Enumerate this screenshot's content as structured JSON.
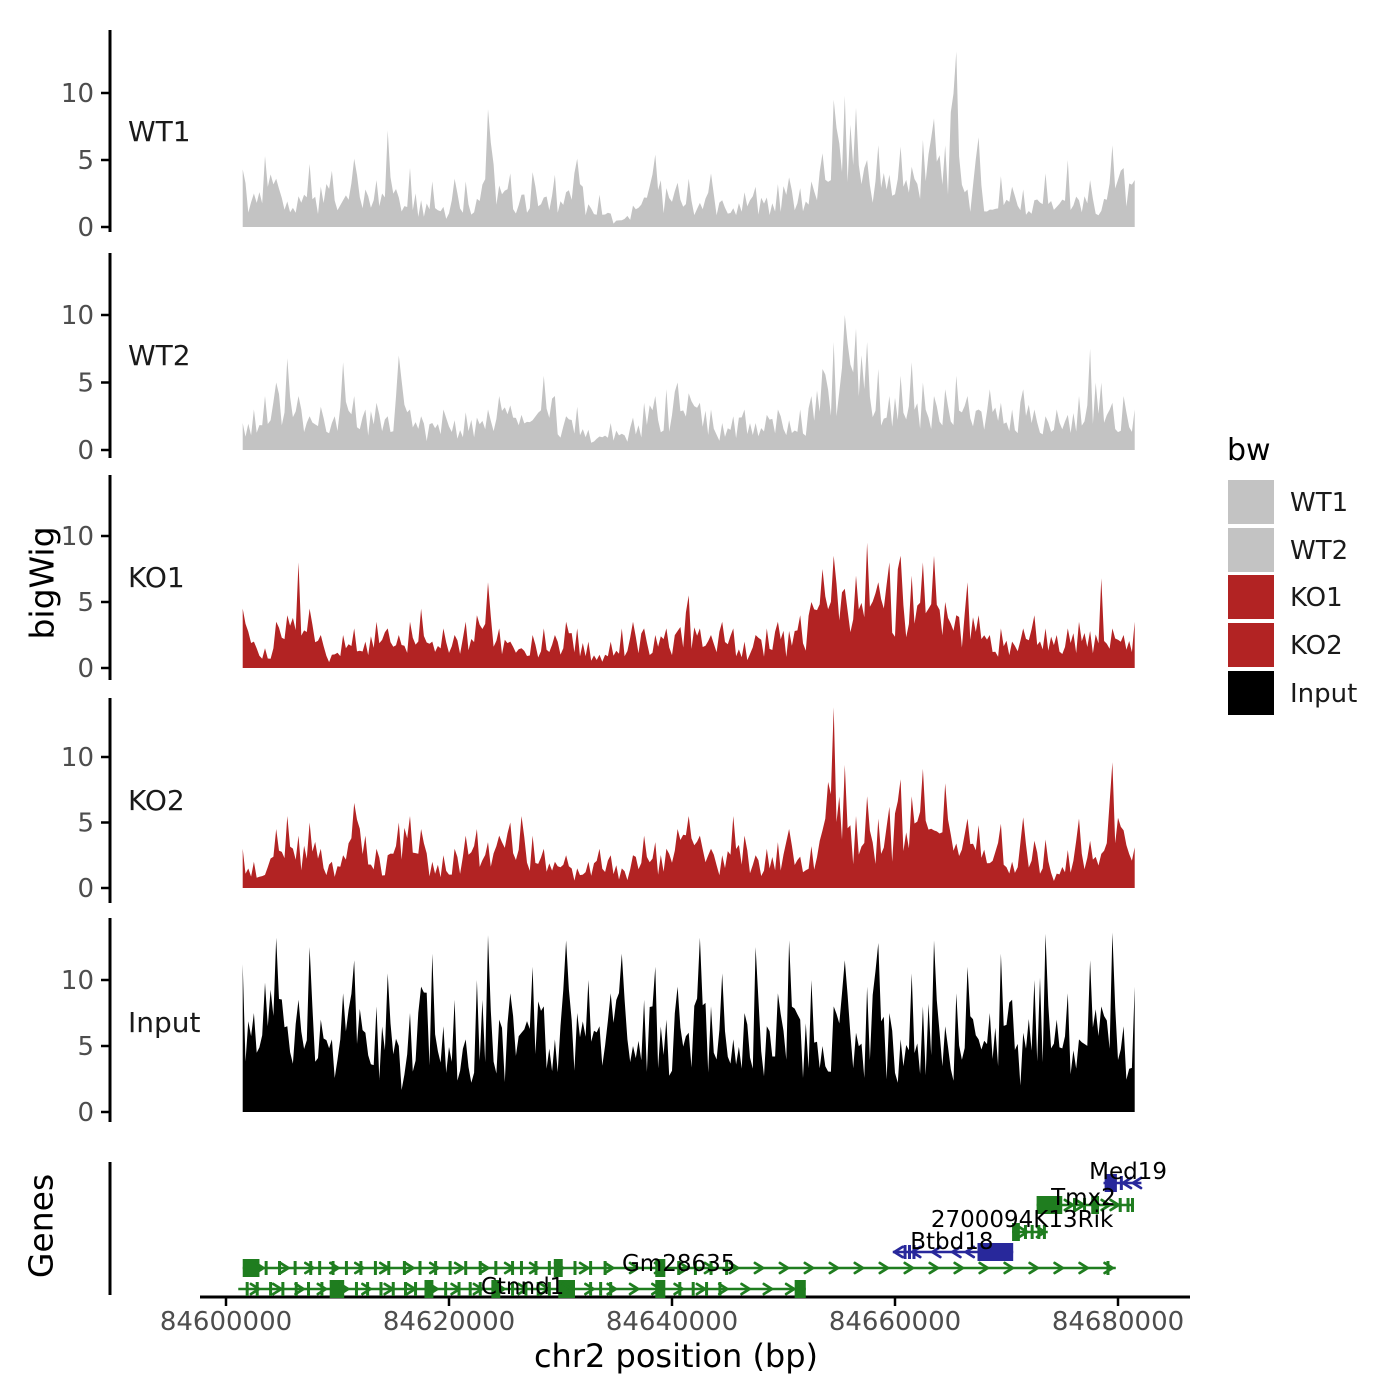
{
  "figure": {
    "background": "#ffffff"
  },
  "chart_data": {
    "type": "area",
    "description": "Genome browser coverage plot: five bigWig signal tracks stacked over a gene-model track",
    "xlabel": "chr2 position (bp)",
    "ylabel_tracks": "bigWig",
    "ylabel_genes": "Genes",
    "x_axis": {
      "range": [
        84600000,
        84680000
      ],
      "ticks": [
        84600000,
        84620000,
        84640000,
        84660000,
        84680000
      ],
      "tick_labels": [
        "84600000",
        "84620000",
        "84640000",
        "84660000",
        "84680000"
      ]
    },
    "y_axis": {
      "ticks": [
        0,
        5,
        10
      ],
      "tick_labels": [
        "0",
        "5",
        "10"
      ],
      "ylim": [
        0,
        14
      ]
    },
    "tracks": [
      {
        "name": "WT1",
        "color": "#c3c3c3",
        "start_bp": 84601500,
        "step_bp": 1000,
        "values": [
          4.3,
          2.5,
          5.3,
          3.6,
          1.9,
          2.3,
          4.7,
          3.0,
          4.2,
          2.0,
          5.1,
          2.8,
          3.5,
          7.2,
          2.2,
          4.4,
          2.0,
          3.4,
          1.5,
          3.6,
          3.4,
          2.1,
          8.8,
          3.1,
          4.0,
          2.4,
          4.1,
          2.2,
          3.9,
          2.6,
          5.1,
          1.7,
          2.4,
          1.0,
          0.5,
          1.6,
          2.2,
          5.4,
          2.9,
          3.3,
          3.6,
          1.8,
          4.0,
          2.0,
          1.4,
          2.6,
          3.0,
          2.2,
          3.2,
          3.7,
          2.9,
          3.4,
          5.5,
          9.5,
          9.8,
          8.9,
          5.0,
          6.1,
          3.9,
          6.0,
          4.5,
          6.5,
          8.1,
          6.1,
          13.1,
          2.8,
          6.7,
          1.3,
          3.8,
          3.0,
          2.8,
          2.0,
          4.0,
          1.5,
          5.0,
          2.0,
          3.5,
          1.2,
          6.1,
          4.4,
          3.5
        ]
      },
      {
        "name": "WT2",
        "color": "#c3c3c3",
        "start_bp": 84601500,
        "step_bp": 1000,
        "values": [
          2.0,
          3.0,
          4.0,
          5.0,
          6.8,
          4.0,
          2.5,
          3.2,
          2.0,
          6.5,
          4.0,
          3.0,
          3.5,
          2.5,
          7.0,
          3.0,
          2.5,
          2.0,
          3.0,
          2.2,
          2.8,
          2.4,
          3.0,
          4.0,
          3.3,
          2.6,
          2.2,
          5.5,
          4.0,
          2.5,
          3.2,
          1.5,
          1.0,
          2.0,
          1.2,
          2.4,
          3.5,
          4.0,
          4.5,
          5.0,
          4.2,
          3.5,
          3.0,
          2.0,
          2.5,
          3.0,
          2.0,
          2.6,
          3.0,
          2.2,
          3.0,
          4.0,
          6.0,
          8.0,
          10.0,
          9.0,
          8.0,
          6.0,
          4.0,
          5.5,
          6.5,
          5.0,
          4.0,
          4.5,
          5.5,
          4.0,
          3.0,
          4.5,
          3.5,
          3.0,
          4.5,
          3.0,
          2.5,
          3.0,
          2.6,
          4.0,
          7.5,
          5.0,
          3.5,
          4.0,
          3.0
        ]
      },
      {
        "name": "KO1",
        "color": "#b22323",
        "start_bp": 84601500,
        "step_bp": 1000,
        "values": [
          4.5,
          2.0,
          1.5,
          3.5,
          4.0,
          8.0,
          4.5,
          2.5,
          1.0,
          2.5,
          3.0,
          2.0,
          3.5,
          3.0,
          2.5,
          3.5,
          4.5,
          2.0,
          3.0,
          2.5,
          3.5,
          4.0,
          6.5,
          3.0,
          2.0,
          1.5,
          2.5,
          3.0,
          2.5,
          3.5,
          3.0,
          2.0,
          1.0,
          2.0,
          3.0,
          3.5,
          3.0,
          2.5,
          3.0,
          2.8,
          5.5,
          3.0,
          2.5,
          3.5,
          3.0,
          2.0,
          2.5,
          3.0,
          3.5,
          2.8,
          4.0,
          5.0,
          7.5,
          8.5,
          6.0,
          7.0,
          9.5,
          6.5,
          8.0,
          8.5,
          7.0,
          8.0,
          8.5,
          5.0,
          4.0,
          6.5,
          4.0,
          2.5,
          3.0,
          2.0,
          3.0,
          4.0,
          3.0,
          2.5,
          3.0,
          3.5,
          2.8,
          6.8,
          3.0,
          2.5,
          3.5
        ]
      },
      {
        "name": "KO2",
        "color": "#b22323",
        "start_bp": 84601500,
        "step_bp": 1000,
        "values": [
          3.0,
          2.0,
          1.0,
          4.5,
          5.5,
          4.0,
          5.0,
          3.0,
          2.0,
          2.5,
          6.5,
          4.0,
          3.0,
          2.5,
          5.0,
          5.5,
          4.5,
          2.0,
          2.5,
          3.0,
          4.0,
          4.5,
          3.5,
          4.0,
          5.0,
          5.5,
          4.0,
          3.0,
          2.0,
          2.5,
          1.5,
          2.0,
          3.0,
          2.5,
          1.5,
          2.5,
          4.0,
          3.5,
          3.0,
          4.5,
          5.5,
          4.0,
          3.0,
          2.5,
          5.5,
          4.0,
          2.5,
          3.0,
          3.5,
          4.5,
          2.4,
          3.2,
          4.4,
          13.8,
          9.4,
          5.5,
          7.0,
          5.3,
          6.2,
          8.3,
          7.0,
          9.1,
          4.4,
          8.0,
          3.4,
          5.3,
          4.8,
          1.9,
          4.9,
          2.0,
          5.4,
          3.6,
          3.7,
          1.1,
          2.9,
          5.3,
          3.6,
          2.6,
          9.6,
          4.4,
          3.1
        ]
      },
      {
        "name": "Input",
        "color": "#000000",
        "start_bp": 84601500,
        "step_bp": 1000,
        "values": [
          11.2,
          7.5,
          9.8,
          13.2,
          6.5,
          8.5,
          12.5,
          7.0,
          5.5,
          9.0,
          11.5,
          6.0,
          8.0,
          10.5,
          5.0,
          7.5,
          9.5,
          12.0,
          6.5,
          8.5,
          5.5,
          10.0,
          13.4,
          7.0,
          9.0,
          6.0,
          11.0,
          8.0,
          5.5,
          13.0,
          7.5,
          10.0,
          6.5,
          9.0,
          12.0,
          5.0,
          8.5,
          11.0,
          7.0,
          9.5,
          6.0,
          13.2,
          8.0,
          10.5,
          5.5,
          7.5,
          12.5,
          6.5,
          9.0,
          13.0,
          7.0,
          10.0,
          5.0,
          8.0,
          11.5,
          6.0,
          9.5,
          12.8,
          7.5,
          5.5,
          10.5,
          8.0,
          13.0,
          6.5,
          9.0,
          11.0,
          5.5,
          7.5,
          12.0,
          8.5,
          6.0,
          10.0,
          13.5,
          7.0,
          9.0,
          5.5,
          11.5,
          8.0,
          13.6,
          6.5,
          9.5
        ]
      }
    ],
    "gene_colors": {
      "plus": "#28289b",
      "minus": "#1f7d1f"
    },
    "genes": [
      {
        "name": "Med19",
        "strand": "+",
        "start": 84678700,
        "end": 84682100,
        "boxes": [
          [
            84678800,
            84679900
          ]
        ],
        "ticks": [
          84680300
        ],
        "arrows": [
          84680800,
          84681700
        ],
        "label_bp": 84680900
      },
      {
        "name": "Tmx2",
        "strand": "-",
        "start": 84672700,
        "end": 84681400,
        "boxes": [
          [
            84672700,
            84675000
          ],
          [
            84677600,
            84678300
          ]
        ],
        "ticks": [
          84676100,
          84677000,
          84680200,
          84680900,
          84681300
        ],
        "arrows": [
          84675600,
          84676600,
          84678900,
          84679700
        ],
        "label_bp": 84676900
      },
      {
        "name": "2700094K13Rik",
        "strand": "-",
        "start": 84670500,
        "end": 84673700,
        "boxes": [
          [
            84670500,
            84671200
          ]
        ],
        "ticks": [
          84671700,
          84672300,
          84672900,
          84673400
        ],
        "arrows": [
          84671500,
          84673100
        ],
        "label_bp": 84671400
      },
      {
        "name": "Btbd18",
        "strand": "+",
        "start": 84659800,
        "end": 84670600,
        "boxes": [
          [
            84667400,
            84670600
          ]
        ],
        "ticks": [
          84660900,
          84661300,
          84661700
        ],
        "arrows": [
          84660300,
          84661900,
          84663700,
          84665500,
          84666700
        ],
        "label_bp": 84665100
      },
      {
        "name": "Gm28635",
        "strand": "-",
        "start": 84601500,
        "end": 84679800,
        "boxes": [
          [
            84601500,
            84603000
          ],
          [
            84629400,
            84630200
          ],
          [
            84638500,
            84639400
          ]
        ],
        "ticks": [
          84603600,
          84604800,
          84606200,
          84607600,
          84608400,
          84609600,
          84610800,
          84612100,
          84613400,
          84614600,
          84616000,
          84617400,
          84618800,
          84620100,
          84621500,
          84622800,
          84624200,
          84625700,
          84626500,
          84627800,
          84629000,
          84631300,
          84632700,
          84634000,
          84640600,
          84642100,
          84643500,
          84644900,
          84679100
        ],
        "arrow_step": 2240,
        "label_bp": 84640600
      },
      {
        "name": "Ctnnd1",
        "strand": "-",
        "start": 84601100,
        "end": 84652000,
        "boxes": [
          [
            84609300,
            84610600
          ],
          [
            84617800,
            84618600
          ],
          [
            84623800,
            84624600
          ],
          [
            84629800,
            84631300
          ],
          [
            84638500,
            84639400
          ],
          [
            84651000,
            84652000
          ]
        ],
        "ticks": [
          84601900,
          84602800,
          84604000,
          84605100,
          84606300,
          84607400,
          84608600,
          84611700,
          84612700,
          84613900,
          84615000,
          84616100,
          84617000,
          84619700,
          84620900,
          84621900,
          84622800,
          84625700,
          84626900,
          84628000,
          84629000,
          84632700,
          84633600,
          84634500,
          84640700,
          84641900,
          84643100,
          84644300
        ],
        "arrow_step": 2000,
        "label_bp": 84626600
      }
    ]
  },
  "legend": {
    "title": "bw",
    "items": [
      {
        "label": "WT1",
        "color": "#c3c3c3"
      },
      {
        "label": "WT2",
        "color": "#c3c3c3"
      },
      {
        "label": "KO1",
        "color": "#b22323"
      },
      {
        "label": "KO2",
        "color": "#b22323"
      },
      {
        "label": "Input",
        "color": "#000000"
      }
    ]
  }
}
